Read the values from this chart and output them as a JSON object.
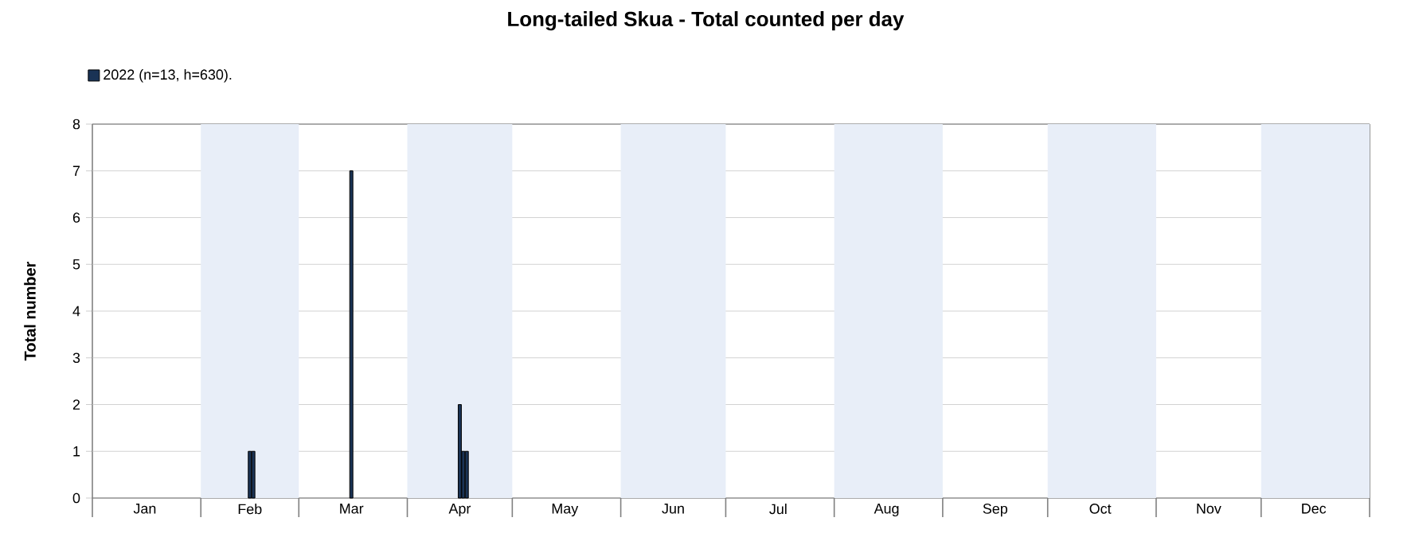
{
  "chart_data": {
    "type": "bar",
    "title": "Long-tailed Skua - Total counted per day",
    "ylabel": "Total number",
    "x": [
      "2022-02-15",
      "2022-02-16",
      "2022-03-16",
      "2022-04-16",
      "2022-04-17",
      "2022-04-18"
    ],
    "series": [
      {
        "name": "2022 (n=13, h=630).",
        "color": "#1a3355",
        "values": [
          1,
          1,
          7,
          2,
          1,
          1
        ]
      }
    ],
    "xlim": [
      "2022-01-01",
      "2023-01-01"
    ],
    "xticks": [
      {
        "value": "2022-01-01",
        "label": null
      },
      {
        "value": "2022-01-16",
        "label": "Jan"
      },
      {
        "value": "2022-02-01",
        "label": null
      },
      {
        "value": "2022-02-15",
        "label": "Feb"
      },
      {
        "value": "2022-03-01",
        "label": null
      },
      {
        "value": "2022-03-16",
        "label": "Mar"
      },
      {
        "value": "2022-04-01",
        "label": null
      },
      {
        "value": "2022-04-16",
        "label": "Apr"
      },
      {
        "value": "2022-05-01",
        "label": null
      },
      {
        "value": "2022-05-16",
        "label": "May"
      },
      {
        "value": "2022-06-01",
        "label": null
      },
      {
        "value": "2022-06-16",
        "label": "Jun"
      },
      {
        "value": "2022-07-01",
        "label": null
      },
      {
        "value": "2022-07-16",
        "label": "Jul"
      },
      {
        "value": "2022-08-01",
        "label": null
      },
      {
        "value": "2022-08-16",
        "label": "Aug"
      },
      {
        "value": "2022-09-01",
        "label": null
      },
      {
        "value": "2022-09-16",
        "label": "Sep"
      },
      {
        "value": "2022-10-01",
        "label": null
      },
      {
        "value": "2022-10-16",
        "label": "Oct"
      },
      {
        "value": "2022-11-01",
        "label": null
      },
      {
        "value": "2022-11-16",
        "label": "Nov"
      },
      {
        "value": "2022-12-01",
        "label": null
      },
      {
        "value": "2022-12-16",
        "label": "Dec"
      },
      {
        "value": "2023-01-01",
        "label": null
      }
    ],
    "ylim": [
      0,
      8
    ],
    "yticks": [
      0,
      1,
      2,
      3,
      4,
      5,
      6,
      7,
      8
    ],
    "grid": "y",
    "legend": "top left",
    "bands": [
      {
        "axis": "x",
        "from": "2022-02-01",
        "to": "2022-03-01",
        "color": "#e8eef8"
      },
      {
        "axis": "x",
        "from": "2022-04-01",
        "to": "2022-05-01",
        "color": "#e8eef8"
      },
      {
        "axis": "x",
        "from": "2022-06-01",
        "to": "2022-07-01",
        "color": "#e8eef8"
      },
      {
        "axis": "x",
        "from": "2022-08-01",
        "to": "2022-09-01",
        "color": "#e8eef8"
      },
      {
        "axis": "x",
        "from": "2022-10-01",
        "to": "2022-11-01",
        "color": "#e8eef8"
      },
      {
        "axis": "x",
        "from": "2022-12-01",
        "to": "2023-01-01",
        "color": "#e8eef8"
      }
    ]
  }
}
